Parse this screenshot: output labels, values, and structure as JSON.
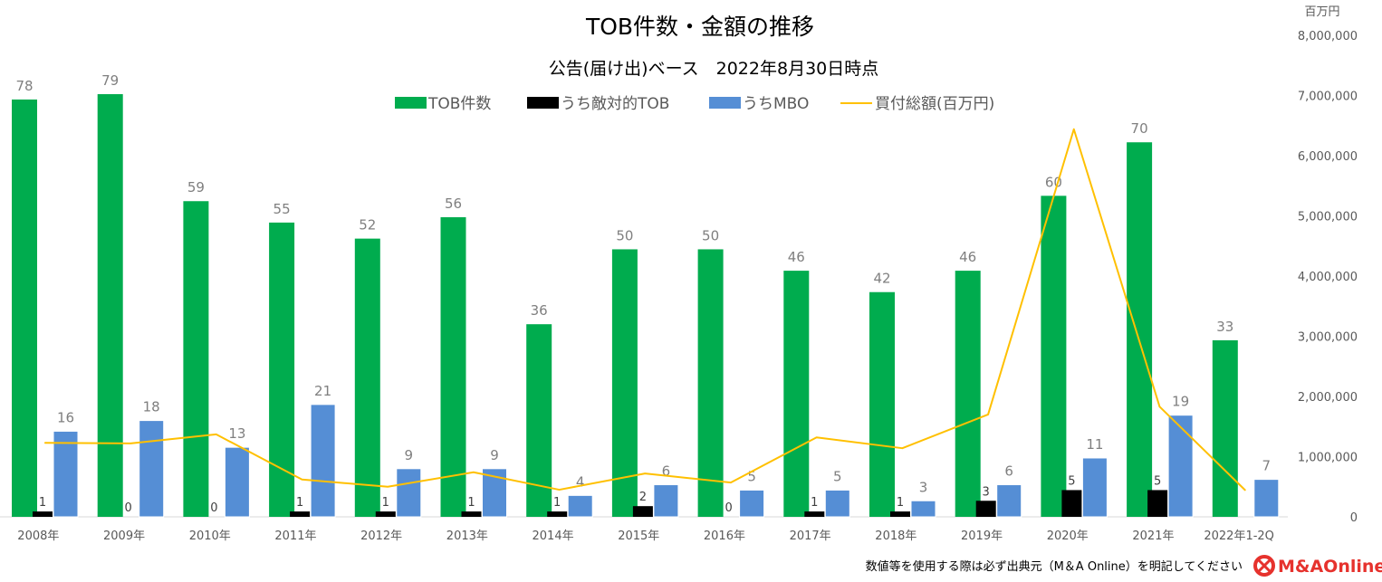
{
  "chart_data": {
    "type": "bar+line",
    "title": "TOB件数・金額の推移",
    "subtitle": "公告(届け出)ベース　2022年8月30日時点",
    "categories": [
      "2008年",
      "2009年",
      "2010年",
      "2011年",
      "2012年",
      "2013年",
      "2014年",
      "2015年",
      "2016年",
      "2017年",
      "2018年",
      "2019年",
      "2020年",
      "2021年",
      "2022年1-2Q"
    ],
    "series": [
      {
        "name": "TOB件数",
        "type": "bar",
        "axis": "left",
        "color": "#00ac4e",
        "values": [
          78,
          79,
          59,
          55,
          52,
          56,
          36,
          50,
          50,
          46,
          42,
          46,
          60,
          70,
          33
        ]
      },
      {
        "name": "うち敵対的TOB",
        "type": "bar",
        "axis": "left",
        "color": "#000000",
        "values": [
          1,
          0,
          0,
          1,
          1,
          1,
          1,
          2,
          0,
          1,
          1,
          3,
          5,
          5,
          null
        ]
      },
      {
        "name": "うちMBO",
        "type": "bar",
        "axis": "left",
        "color": "#558ed5",
        "values": [
          16,
          18,
          13,
          21,
          9,
          9,
          4,
          6,
          5,
          5,
          3,
          6,
          11,
          19,
          7
        ]
      },
      {
        "name": "買付総額(百万円)",
        "type": "line",
        "axis": "right",
        "color": "#ffc000",
        "values": [
          1230000,
          1220000,
          1370000,
          620000,
          500000,
          740000,
          450000,
          720000,
          570000,
          1320000,
          1140000,
          1700000,
          6440000,
          1830000,
          440000
        ]
      }
    ],
    "left_axis": {
      "visible": false,
      "ylim": [
        0,
        90
      ]
    },
    "right_axis": {
      "unit_label": "百万円",
      "ylim": [
        0,
        8000000
      ],
      "ticks": [
        "0",
        "1,000,000",
        "2,000,000",
        "3,000,000",
        "4,000,000",
        "5,000,000",
        "6,000,000",
        "7,000,000",
        "8,000,000"
      ]
    },
    "legend_position": "top",
    "grid": false
  },
  "footer": {
    "note": "数値等を使用する際は必ず出典元（M＆A Online）を明記してください",
    "logo_text": "M&AOnline"
  }
}
